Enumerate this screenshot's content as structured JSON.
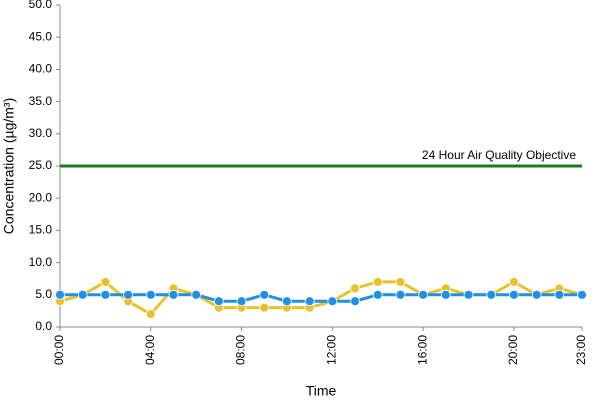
{
  "chart_data": {
    "type": "line",
    "x_label": "Time",
    "y_label": "Concentration (µg/m³)",
    "categories": [
      "00:00",
      null,
      null,
      null,
      "04:00",
      null,
      null,
      null,
      "08:00",
      null,
      null,
      null,
      "12:00",
      null,
      null,
      null,
      "16:00",
      null,
      null,
      null,
      "20:00",
      null,
      null,
      "23:00"
    ],
    "series": [
      {
        "color": "#e8c22c",
        "values": [
          4,
          5,
          7,
          4,
          2,
          6,
          5,
          3,
          3,
          3,
          3,
          3,
          4,
          6,
          7,
          7,
          5,
          6,
          5,
          5,
          7,
          5,
          6,
          5
        ]
      },
      {
        "color": "#1e90e8",
        "values": [
          5,
          5,
          5,
          5,
          5,
          5,
          5,
          4,
          4,
          5,
          4,
          4,
          4,
          4,
          5,
          5,
          5,
          5,
          5,
          5,
          5,
          5,
          5,
          5
        ]
      }
    ],
    "threshold": {
      "value": 25,
      "label": "24 Hour Air Quality Objective",
      "color": "#1a7a1a"
    },
    "ylim": [
      0,
      50
    ],
    "yticks": [
      {
        "value": 0,
        "label": "0.0"
      },
      {
        "value": 5,
        "label": "5.0"
      },
      {
        "value": 10,
        "label": "10.0"
      },
      {
        "value": 15,
        "label": "15.0"
      },
      {
        "value": 20,
        "label": "20.0"
      },
      {
        "value": 25,
        "label": "25.0"
      },
      {
        "value": 30,
        "label": "30.0"
      },
      {
        "value": 35,
        "label": "35.0"
      },
      {
        "value": 40,
        "label": "40.0"
      },
      {
        "value": 45,
        "label": "45.0"
      },
      {
        "value": 50,
        "label": "50.0"
      }
    ],
    "grid": false
  }
}
